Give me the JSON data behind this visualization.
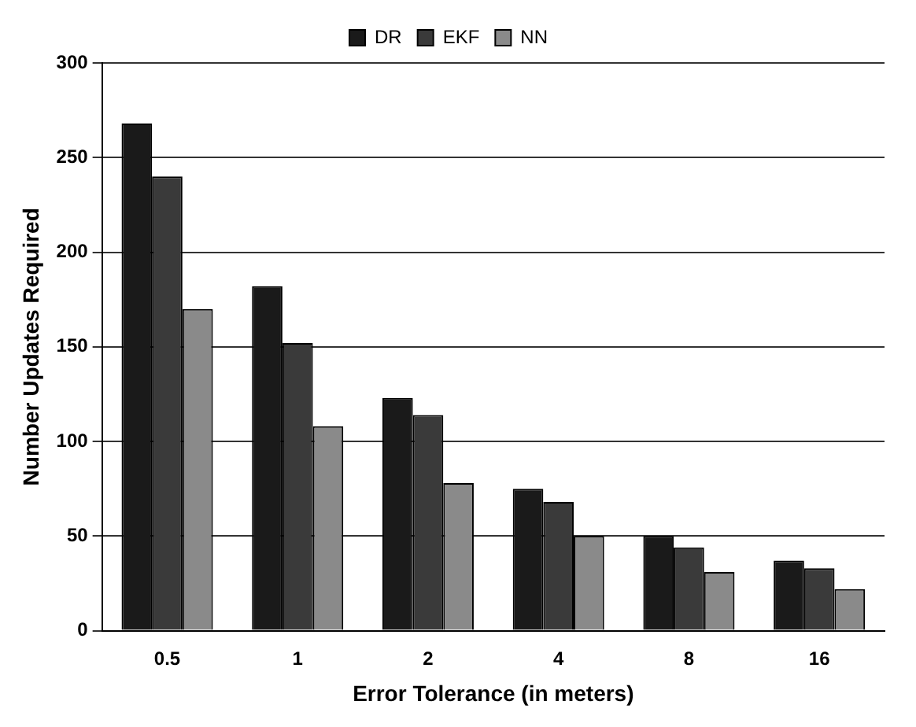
{
  "chart_data": {
    "type": "bar",
    "xlabel": "Error Tolerance (in meters)",
    "ylabel": "Number Updates Required",
    "categories": [
      "0.5",
      "1",
      "2",
      "4",
      "8",
      "16"
    ],
    "series": [
      {
        "name": "DR",
        "color": "#1a1a1a",
        "values": [
          268,
          182,
          123,
          75,
          50,
          37
        ]
      },
      {
        "name": "EKF",
        "color": "#3a3a3a",
        "values": [
          240,
          152,
          114,
          68,
          44,
          33
        ]
      },
      {
        "name": "NN",
        "color": "#8a8a8a",
        "values": [
          170,
          108,
          78,
          50,
          31,
          22
        ]
      }
    ],
    "ylim": [
      0,
      300
    ],
    "yticks": [
      0,
      50,
      100,
      150,
      200,
      250,
      300
    ],
    "grid": "y",
    "legend": "top"
  }
}
